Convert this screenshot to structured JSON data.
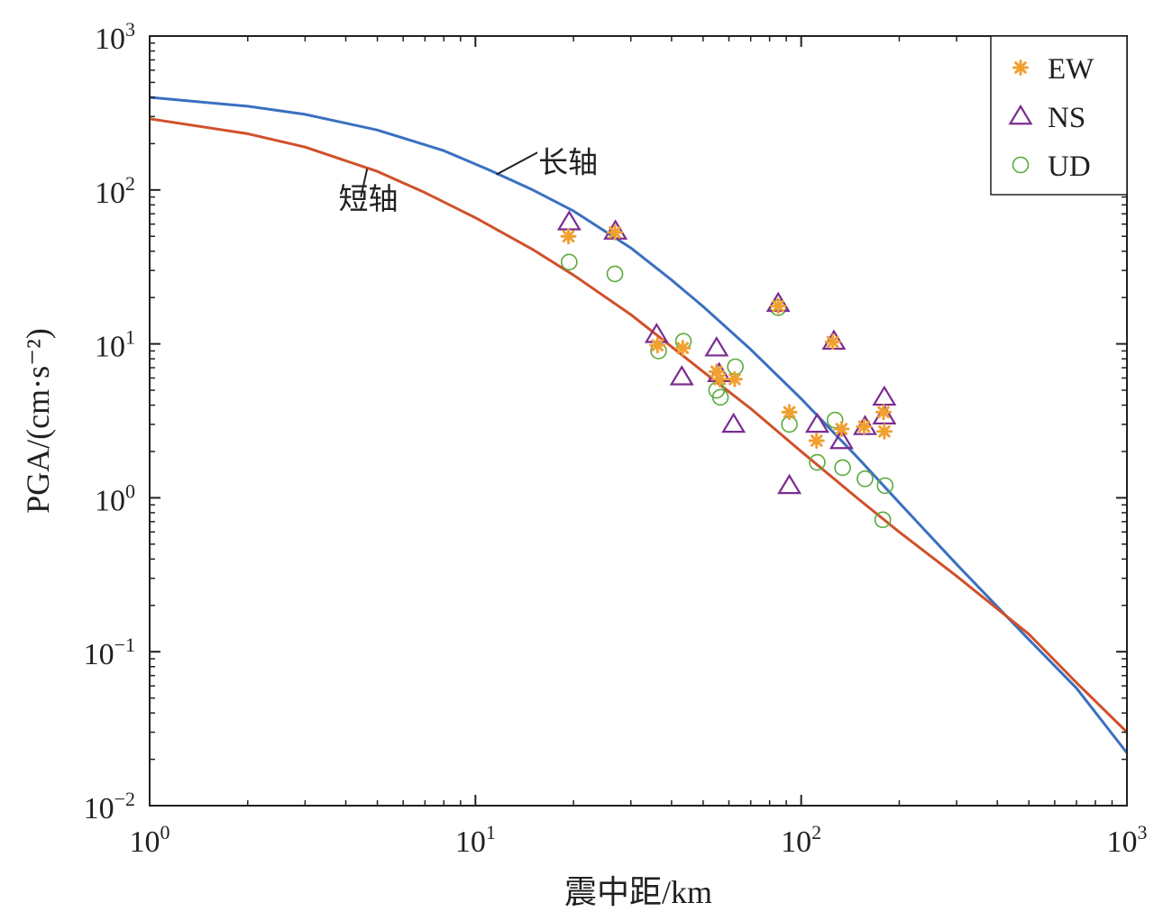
{
  "chart_data": {
    "type": "scatter",
    "xscale": "log",
    "yscale": "log",
    "xlim": [
      1,
      1000
    ],
    "ylim": [
      0.01,
      1000
    ],
    "xlabel": "震中距/km",
    "ylabel": "PGA/(cm·s⁻²)",
    "x_ticks": [
      "10^0",
      "10^1",
      "10^2",
      "10^3"
    ],
    "y_ticks": [
      "10^-2",
      "10^-1",
      "10^0",
      "10^1",
      "10^2",
      "10^3"
    ],
    "tick_base": "10",
    "x_tick_exponents": [
      "0",
      "1",
      "2",
      "3"
    ],
    "y_tick_exponents": [
      "−2",
      "−1",
      "0",
      "1",
      "2",
      "3"
    ],
    "grid": false,
    "legend_position": "top-right",
    "series": [
      {
        "name": "EW",
        "kind": "points",
        "marker": "asterisk",
        "color": "#f0a030",
        "points": [
          [
            19.3,
            50
          ],
          [
            26.8,
            53
          ],
          [
            36.2,
            9.8
          ],
          [
            43.3,
            9.4
          ],
          [
            55,
            6.6
          ],
          [
            56.2,
            5.9
          ],
          [
            62.5,
            5.9
          ],
          [
            85,
            17.6
          ],
          [
            92,
            3.6
          ],
          [
            111.5,
            2.35
          ],
          [
            125,
            10.3
          ],
          [
            133,
            2.8
          ],
          [
            156,
            2.9
          ],
          [
            179,
            3.6
          ],
          [
            180,
            2.7
          ]
        ]
      },
      {
        "name": "NS",
        "kind": "points",
        "marker": "triangle",
        "color": "#7b2c90",
        "points": [
          [
            19.4,
            62
          ],
          [
            26.9,
            54
          ],
          [
            36,
            11.5
          ],
          [
            43,
            6.1
          ],
          [
            55,
            9.4
          ],
          [
            56,
            6.4
          ],
          [
            62,
            3.0
          ],
          [
            85,
            18.3
          ],
          [
            92,
            1.2
          ],
          [
            112,
            3.0
          ],
          [
            126,
            10.4
          ],
          [
            133,
            2.35
          ],
          [
            157,
            2.9
          ],
          [
            180,
            4.5
          ],
          [
            180,
            3.4
          ]
        ]
      },
      {
        "name": "UD",
        "kind": "points",
        "marker": "circle",
        "color": "#5aaa3c",
        "points": [
          [
            19.4,
            34
          ],
          [
            26.8,
            28.5
          ],
          [
            36.5,
            9.0
          ],
          [
            43.5,
            10.4
          ],
          [
            55,
            5.0
          ],
          [
            56.5,
            4.5
          ],
          [
            62.8,
            7.1
          ],
          [
            85,
            17.2
          ],
          [
            92,
            3.0
          ],
          [
            112,
            1.7
          ],
          [
            127,
            3.2
          ],
          [
            134,
            1.57
          ],
          [
            157,
            1.33
          ],
          [
            178,
            0.72
          ],
          [
            181,
            1.2
          ]
        ]
      },
      {
        "name": "长轴",
        "kind": "line",
        "color": "#3a70c0",
        "points": [
          [
            1,
            400
          ],
          [
            2,
            350
          ],
          [
            3,
            310
          ],
          [
            5,
            245
          ],
          [
            8,
            180
          ],
          [
            11,
            135
          ],
          [
            15,
            100
          ],
          [
            20,
            73
          ],
          [
            30,
            42
          ],
          [
            40,
            26
          ],
          [
            50,
            17.5
          ],
          [
            70,
            9.2
          ],
          [
            100,
            4.4
          ],
          [
            150,
            1.8
          ],
          [
            200,
            0.93
          ],
          [
            300,
            0.37
          ],
          [
            500,
            0.12
          ],
          [
            700,
            0.058
          ],
          [
            1000,
            0.022
          ]
        ]
      },
      {
        "name": "短轴",
        "kind": "line",
        "color": "#d0502a",
        "points": [
          [
            1,
            290
          ],
          [
            2,
            232
          ],
          [
            3,
            190
          ],
          [
            5,
            132
          ],
          [
            7,
            96
          ],
          [
            10,
            66
          ],
          [
            15,
            41
          ],
          [
            20,
            28
          ],
          [
            30,
            15.5
          ],
          [
            50,
            6.6
          ],
          [
            70,
            3.8
          ],
          [
            100,
            2.0
          ],
          [
            150,
            0.98
          ],
          [
            200,
            0.6
          ],
          [
            300,
            0.31
          ],
          [
            500,
            0.13
          ],
          [
            700,
            0.063
          ],
          [
            1000,
            0.03
          ]
        ]
      }
    ],
    "annotations": [
      {
        "text": "长轴",
        "series": "长轴",
        "label_at": [
          15.6,
          130
        ],
        "leader_from": [
          15.5,
          175
        ],
        "leader_to": [
          11.6,
          126
        ]
      },
      {
        "text": "短轴",
        "series": "短轴",
        "label_at": [
          3.8,
          75
        ],
        "leader_from": [
          4.45,
          90
        ],
        "leader_to": [
          4.65,
          137
        ]
      }
    ]
  }
}
